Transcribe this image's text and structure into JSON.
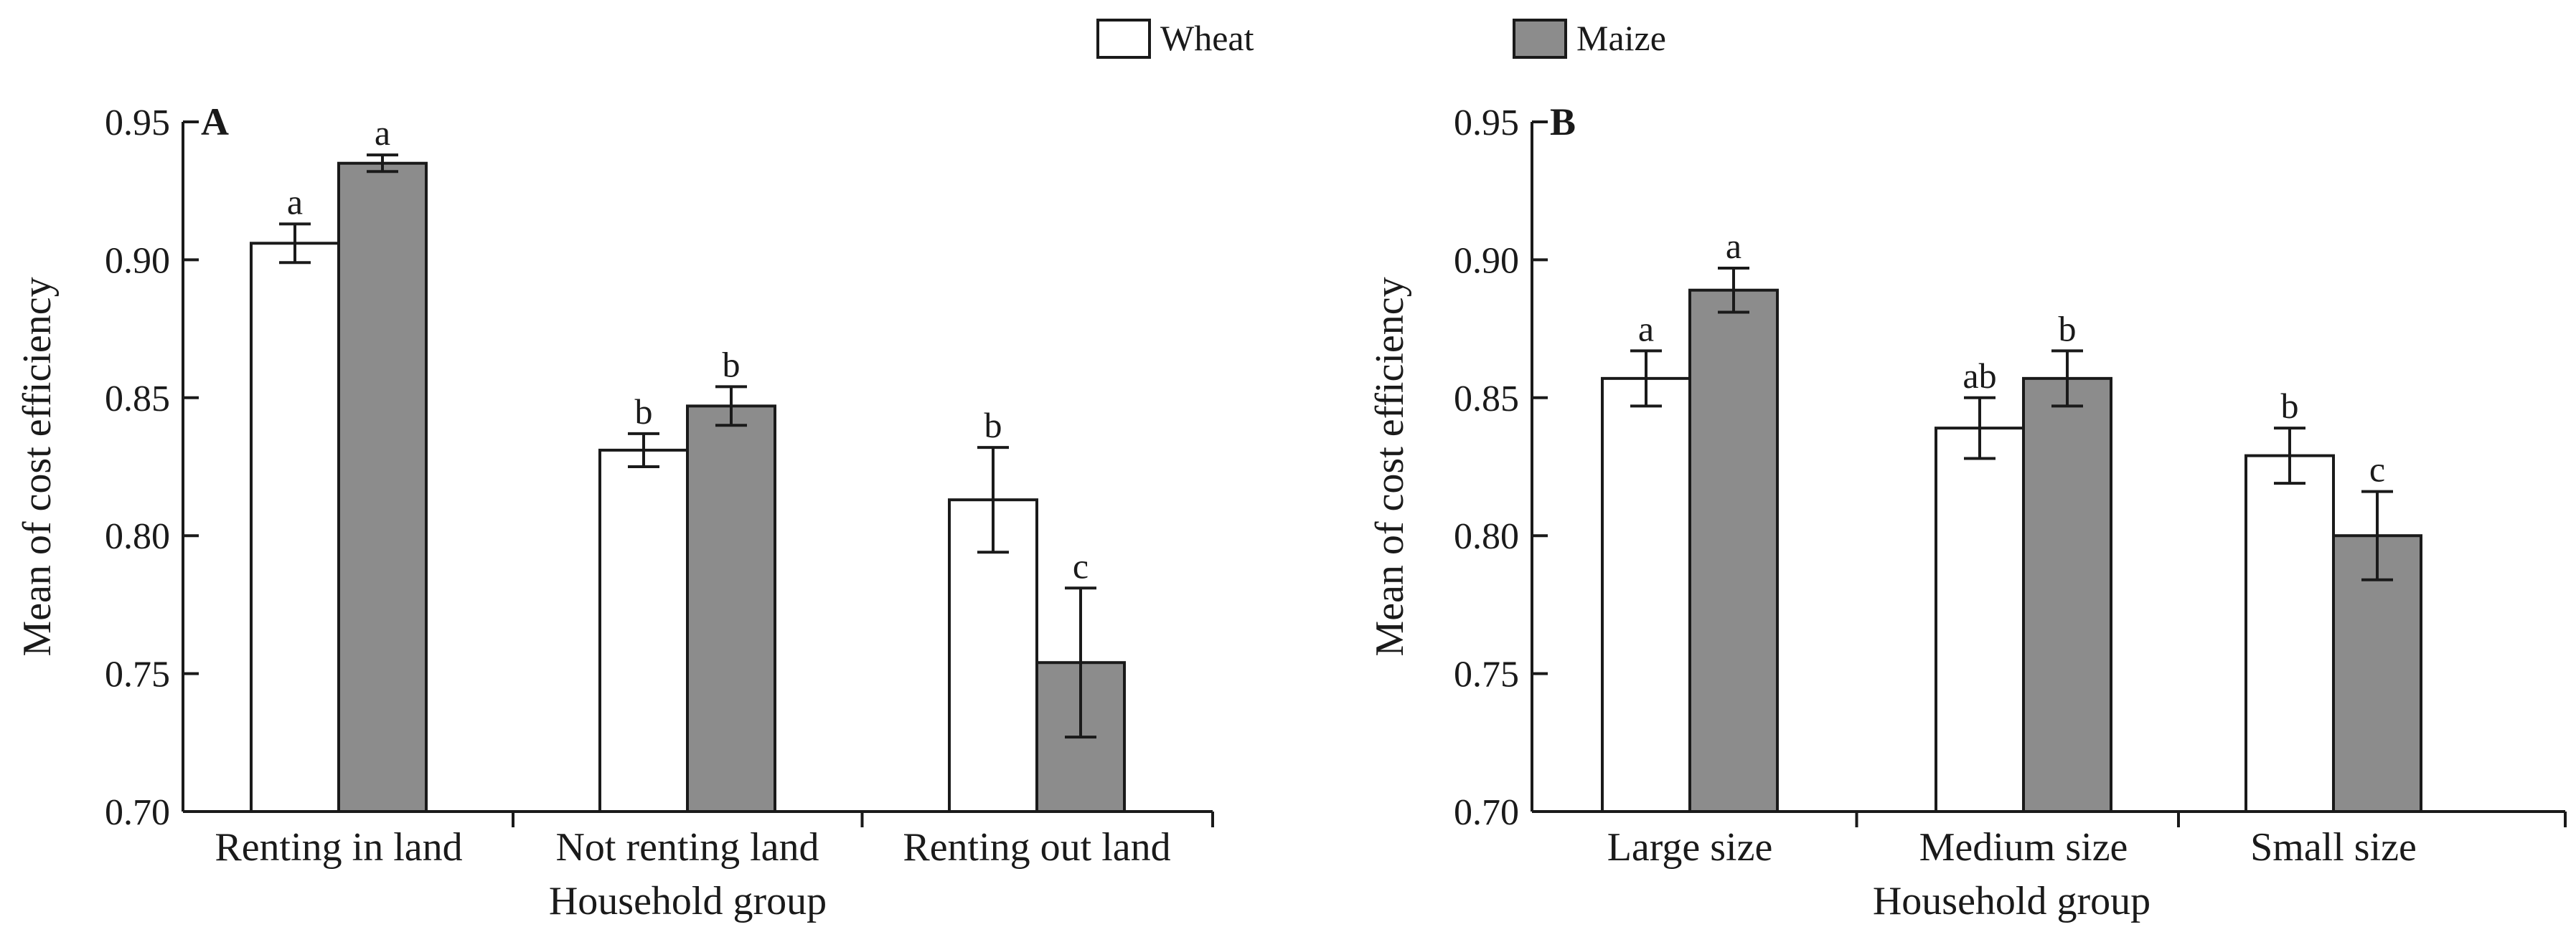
{
  "legend": [
    {
      "label": "Wheat",
      "color": "#ffffff"
    },
    {
      "label": "Maize",
      "color": "#8c8c8c"
    }
  ],
  "chart_data": [
    {
      "type": "bar",
      "panel_label": "A",
      "xlabel": "Household group",
      "ylabel": "Mean of cost efficiency",
      "ylim": [
        0.7,
        0.95
      ],
      "yticks": [
        "0.70",
        "0.75",
        "0.80",
        "0.85",
        "0.90",
        "0.95"
      ],
      "categories": [
        "Renting in land",
        "Not renting land",
        "Renting out land"
      ],
      "series": [
        {
          "name": "Wheat",
          "values": [
            0.906,
            0.831,
            0.813
          ],
          "errors": [
            0.007,
            0.006,
            0.019
          ],
          "letters": [
            "a",
            "b",
            "b"
          ]
        },
        {
          "name": "Maize",
          "values": [
            0.935,
            0.847,
            0.754
          ],
          "errors": [
            0.003,
            0.007,
            0.027
          ],
          "letters": [
            "a",
            "b",
            "c"
          ]
        }
      ]
    },
    {
      "type": "bar",
      "panel_label": "B",
      "xlabel": "Household group",
      "ylabel": "Mean of cost efficiency",
      "ylim": [
        0.7,
        0.95
      ],
      "yticks": [
        "0.70",
        "0.75",
        "0.80",
        "0.85",
        "0.90",
        "0.95"
      ],
      "categories": [
        "Large size",
        "Medium size",
        "Small size"
      ],
      "series": [
        {
          "name": "Wheat",
          "values": [
            0.857,
            0.839,
            0.829
          ],
          "errors": [
            0.01,
            0.011,
            0.01
          ],
          "letters": [
            "a",
            "ab",
            "b"
          ]
        },
        {
          "name": "Maize",
          "values": [
            0.889,
            0.857,
            0.8
          ],
          "errors": [
            0.008,
            0.01,
            0.016
          ],
          "letters": [
            "a",
            "b",
            "c"
          ]
        }
      ]
    }
  ]
}
